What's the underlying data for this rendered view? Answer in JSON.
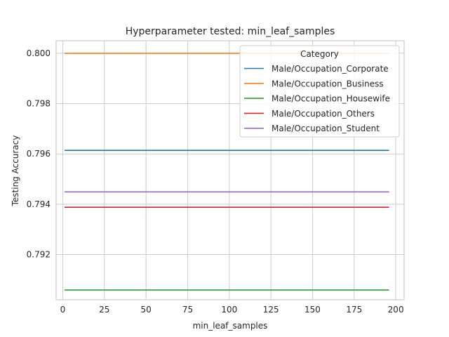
{
  "chart_data": {
    "type": "line",
    "title": "Hyperparameter tested: min_leaf_samples",
    "xlabel": "min_leaf_samples",
    "ylabel": "Testing Accuracy",
    "xlim": [
      -4,
      205
    ],
    "ylim": [
      0.7902,
      0.8005
    ],
    "xticks": [
      0,
      25,
      50,
      75,
      100,
      125,
      150,
      175,
      200
    ],
    "yticks": [
      0.792,
      0.794,
      0.796,
      0.798,
      0.8
    ],
    "ytick_labels": [
      "0.792",
      "0.794",
      "0.796",
      "0.798",
      "0.800"
    ],
    "grid": true,
    "legend": {
      "title": "Category",
      "placement": "upper right"
    },
    "x": [
      1,
      196
    ],
    "series": [
      {
        "name": "Male/Occupation_Corporate",
        "color": "#1f77b4",
        "values": [
          0.79614,
          0.79614
        ]
      },
      {
        "name": "Male/Occupation_Business",
        "color": "#ff7f0e",
        "values": [
          0.8,
          0.8
        ]
      },
      {
        "name": "Male/Occupation_Housewife",
        "color": "#2ca02c",
        "values": [
          0.79059,
          0.79059
        ]
      },
      {
        "name": "Male/Occupation_Others",
        "color": "#d62728",
        "values": [
          0.79388,
          0.79388
        ]
      },
      {
        "name": "Male/Occupation_Student",
        "color": "#9467bd",
        "values": [
          0.79449,
          0.79449
        ]
      }
    ]
  }
}
